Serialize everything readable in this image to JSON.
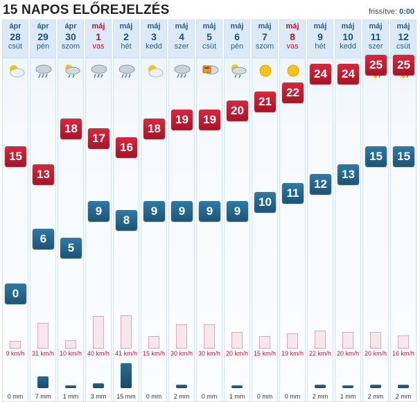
{
  "header": {
    "title": "15 NAPOS ELŐREJELZÉS",
    "refresh_label": "frissítve:",
    "refresh_time": "0:00"
  },
  "days": [
    {
      "month": "ápr",
      "day": "28",
      "dow": "csüt",
      "icon": "partly-cloudy-icon",
      "hi": "15",
      "lo": "0",
      "wind": "9 km/h",
      "wind_kmh": 9,
      "precip": "0 mm",
      "precip_mm": 0,
      "weekend": false
    },
    {
      "month": "ápr",
      "day": "29",
      "dow": "pén",
      "icon": "rain-cloud-icon",
      "hi": "13",
      "lo": "6",
      "wind": "31 km/h",
      "wind_kmh": 31,
      "precip": "7 mm",
      "precip_mm": 7,
      "weekend": false
    },
    {
      "month": "ápr",
      "day": "30",
      "dow": "szom",
      "icon": "sun-rain-icon",
      "hi": "18",
      "lo": "5",
      "wind": "10 km/h",
      "wind_kmh": 10,
      "precip": "1 mm",
      "precip_mm": 1,
      "weekend": false
    },
    {
      "month": "máj",
      "day": "1",
      "dow": "vas",
      "icon": "rain-cloud-icon",
      "hi": "17",
      "lo": "9",
      "wind": "40 km/h",
      "wind_kmh": 40,
      "precip": "3 mm",
      "precip_mm": 3,
      "weekend": true
    },
    {
      "month": "máj",
      "day": "2",
      "dow": "hét",
      "icon": "rain-cloud-icon",
      "hi": "16",
      "lo": "8",
      "wind": "41 km/h",
      "wind_kmh": 41,
      "precip": "15 mm",
      "precip_mm": 15,
      "weekend": false
    },
    {
      "month": "máj",
      "day": "3",
      "dow": "kedd",
      "icon": "partly-cloudy-icon",
      "hi": "18",
      "lo": "9",
      "wind": "15 km/h",
      "wind_kmh": 15,
      "precip": "0 mm",
      "precip_mm": 0,
      "weekend": false
    },
    {
      "month": "máj",
      "day": "4",
      "dow": "szer",
      "icon": "rain-cloud-icon",
      "hi": "19",
      "lo": "9",
      "wind": "30 km/h",
      "wind_kmh": 30,
      "precip": "2 mm",
      "precip_mm": 2,
      "weekend": false
    },
    {
      "month": "máj",
      "day": "5",
      "dow": "csüt",
      "icon": "warning-icon",
      "hi": "19",
      "lo": "9",
      "wind": "30 km/h",
      "wind_kmh": 30,
      "precip": "0 mm",
      "precip_mm": 0,
      "weekend": false
    },
    {
      "month": "máj",
      "day": "6",
      "dow": "pén",
      "icon": "sun-rain-icon",
      "hi": "20",
      "lo": "9",
      "wind": "20 km/h",
      "wind_kmh": 20,
      "precip": "1 mm",
      "precip_mm": 1,
      "weekend": false
    },
    {
      "month": "máj",
      "day": "7",
      "dow": "szom",
      "icon": "sun-icon",
      "hi": "21",
      "lo": "10",
      "wind": "15 km/h",
      "wind_kmh": 15,
      "precip": "0 mm",
      "precip_mm": 0,
      "weekend": false
    },
    {
      "month": "máj",
      "day": "8",
      "dow": "vas",
      "icon": "sun-icon",
      "hi": "22",
      "lo": "11",
      "wind": "19 km/h",
      "wind_kmh": 19,
      "precip": "0 mm",
      "precip_mm": 0,
      "weekend": true
    },
    {
      "month": "máj",
      "day": "9",
      "dow": "hét",
      "icon": "sun-rain-icon",
      "hi": "24",
      "lo": "12",
      "wind": "22 km/h",
      "wind_kmh": 22,
      "precip": "2 mm",
      "precip_mm": 2,
      "weekend": false
    },
    {
      "month": "máj",
      "day": "10",
      "dow": "kedd",
      "icon": "sun-rain-icon",
      "hi": "24",
      "lo": "13",
      "wind": "20 km/h",
      "wind_kmh": 20,
      "precip": "1 mm",
      "precip_mm": 1,
      "weekend": false
    },
    {
      "month": "máj",
      "day": "11",
      "dow": "szer",
      "icon": "thunderstorm-icon",
      "hi": "25",
      "lo": "15",
      "wind": "20 km/h",
      "wind_kmh": 20,
      "precip": "2 mm",
      "precip_mm": 2,
      "weekend": false
    },
    {
      "month": "máj",
      "day": "12",
      "dow": "csüt",
      "icon": "thunderstorm-icon",
      "hi": "25",
      "lo": "15",
      "wind": "16 km/h",
      "wind_kmh": 16,
      "precip": "2 mm",
      "precip_mm": 2,
      "weekend": false
    }
  ],
  "colors": {
    "high": "#c11b33",
    "low": "#246a94",
    "weekend_text": "#c8102e",
    "header_bg": "#dbeaf6"
  }
}
